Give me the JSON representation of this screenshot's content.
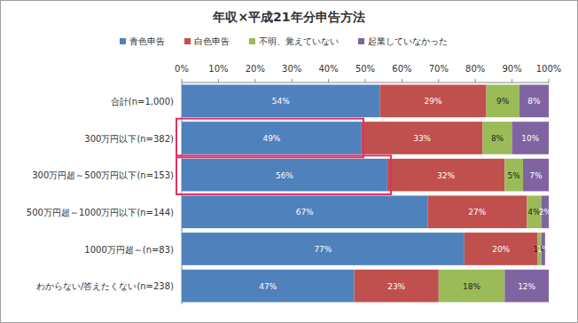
{
  "chart_data": {
    "type": "bar",
    "title": "年収×平成21年分申告方法",
    "orientation": "horizontal",
    "stacked": true,
    "data_labels": true,
    "grid": false,
    "legend": "top",
    "categories": [
      "合計(n=1,000)",
      "300万円以下(n=382)",
      "300万円超～500万円以下(n=153)",
      "500万円超～1000万円以下(n=144)",
      "1000万円超～(n=83)",
      "わからない/答えたくない(n=238)"
    ],
    "xlim": [
      0,
      100
    ],
    "xticks": [
      {
        "value": 0,
        "label": "0%"
      },
      {
        "value": 10,
        "label": "10%"
      },
      {
        "value": 20,
        "label": "20%"
      },
      {
        "value": 30,
        "label": "30%"
      },
      {
        "value": 40,
        "label": "40%"
      },
      {
        "value": 50,
        "label": "50%"
      },
      {
        "value": 60,
        "label": "60%"
      },
      {
        "value": 70,
        "label": "70%"
      },
      {
        "value": 80,
        "label": "80%"
      },
      {
        "value": 90,
        "label": "90%"
      },
      {
        "value": 100,
        "label": "100%"
      }
    ],
    "series": [
      {
        "name": "青色申告",
        "color": "#4f81bd",
        "values": [
          54,
          49,
          56,
          67,
          77,
          47
        ],
        "value_labels": [
          "54%",
          "49%",
          "56%",
          "67%",
          "77%",
          "47%"
        ]
      },
      {
        "name": "白色申告",
        "color": "#c0504d",
        "values": [
          29,
          33,
          32,
          27,
          20,
          23
        ],
        "value_labels": [
          "29%",
          "33%",
          "32%",
          "27%",
          "20%",
          "23%"
        ]
      },
      {
        "name": "不明、覚えていない",
        "color": "#9bbb59",
        "values": [
          9,
          8,
          5,
          4,
          1,
          18
        ],
        "value_labels": [
          "9%",
          "8%",
          "5%",
          "4%",
          "1%",
          "18%"
        ]
      },
      {
        "name": "起業していなかった",
        "color": "#8064a2",
        "values": [
          8,
          10,
          7,
          2,
          1,
          12
        ],
        "value_labels": [
          "8%",
          "10%",
          "7%",
          "2%",
          "1%",
          "12%"
        ]
      }
    ]
  }
}
